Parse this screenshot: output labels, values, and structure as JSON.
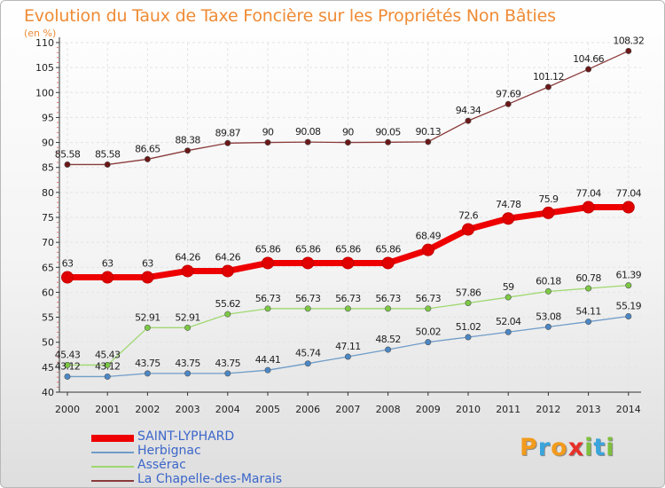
{
  "title": "Evolution du Taux de Taxe Foncière sur les Propriétés Non Bâties",
  "unit": "(en %)",
  "logo": {
    "text": "Proxiti",
    "letters": [
      {
        "ch": "P",
        "color": "#f29b1d"
      },
      {
        "ch": "r",
        "color": "#3aa5dd"
      },
      {
        "ch": "o",
        "color": "#f29b1d"
      },
      {
        "ch": "x",
        "color": "#e8302a"
      },
      {
        "ch": "i",
        "color": "#7fbf3f"
      },
      {
        "ch": "t",
        "color": "#3aa5dd"
      },
      {
        "ch": "i",
        "color": "#7fbf3f"
      }
    ]
  },
  "chart_data": {
    "type": "line",
    "x": [
      2000,
      2001,
      2002,
      2003,
      2004,
      2005,
      2006,
      2007,
      2008,
      2009,
      2010,
      2011,
      2012,
      2013,
      2014
    ],
    "ylim": [
      40,
      110
    ],
    "yticks": [
      40,
      45,
      50,
      55,
      60,
      65,
      70,
      75,
      80,
      85,
      90,
      95,
      100,
      105,
      110
    ],
    "grid": true,
    "legend_position": "bottom-left",
    "series": [
      {
        "name": "SAINT-LYPHARD",
        "color": "#ee0000",
        "marker": "#e00000",
        "width": 7,
        "radius": 6.5,
        "values": [
          63,
          63,
          63,
          64.26,
          64.26,
          65.86,
          65.86,
          65.86,
          65.86,
          68.49,
          72.6,
          74.78,
          75.9,
          77.04,
          77.04
        ],
        "labels": [
          "63",
          "63",
          "63",
          "64.26",
          "64.26",
          "65.86",
          "65.86",
          "65.86",
          "65.86",
          "68.49",
          "72.6",
          "74.78",
          "75.9",
          "77.04",
          "77.04"
        ]
      },
      {
        "name": "Herbignac",
        "color": "#6f9cc8",
        "marker": "#4a87c6",
        "width": 1.3,
        "radius": 3.2,
        "values": [
          43.12,
          43.12,
          43.75,
          43.75,
          43.75,
          44.41,
          45.74,
          47.11,
          48.52,
          50.02,
          51.02,
          52.04,
          53.08,
          54.11,
          55.19
        ],
        "labels": [
          "43.12",
          "43.12",
          "43.75",
          "43.75",
          "43.75",
          "44.41",
          "45.74",
          "47.11",
          "48.52",
          "50.02",
          "51.02",
          "52.04",
          "53.08",
          "54.11",
          "55.19"
        ]
      },
      {
        "name": "Assérac",
        "color": "#9fd86f",
        "marker": "#7cc943",
        "width": 1.3,
        "radius": 3.2,
        "values": [
          45.43,
          45.43,
          52.91,
          52.91,
          55.62,
          56.73,
          56.73,
          56.73,
          56.73,
          56.73,
          57.86,
          59,
          60.18,
          60.78,
          61.39
        ],
        "labels": [
          "45.43",
          "45.43",
          "52.91",
          "52.91",
          "55.62",
          "56.73",
          "56.73",
          "56.73",
          "56.73",
          "56.73",
          "57.86",
          "59",
          "60.18",
          "60.78",
          "61.39"
        ]
      },
      {
        "name": "La Chapelle-des-Marais",
        "color": "#8a3a3a",
        "marker": "#6b1717",
        "width": 1.3,
        "radius": 3.2,
        "values": [
          85.58,
          85.58,
          86.65,
          88.38,
          89.87,
          90,
          90.08,
          90,
          90.05,
          90.13,
          94.34,
          97.69,
          101.12,
          104.66,
          108.32
        ],
        "labels": [
          "85.58",
          "85.58",
          "86.65",
          "88.38",
          "89.87",
          "90",
          "90.08",
          "90",
          "90.05",
          "90.13",
          "94.34",
          "97.69",
          "101.12",
          "104.66",
          "108.32"
        ]
      }
    ]
  }
}
